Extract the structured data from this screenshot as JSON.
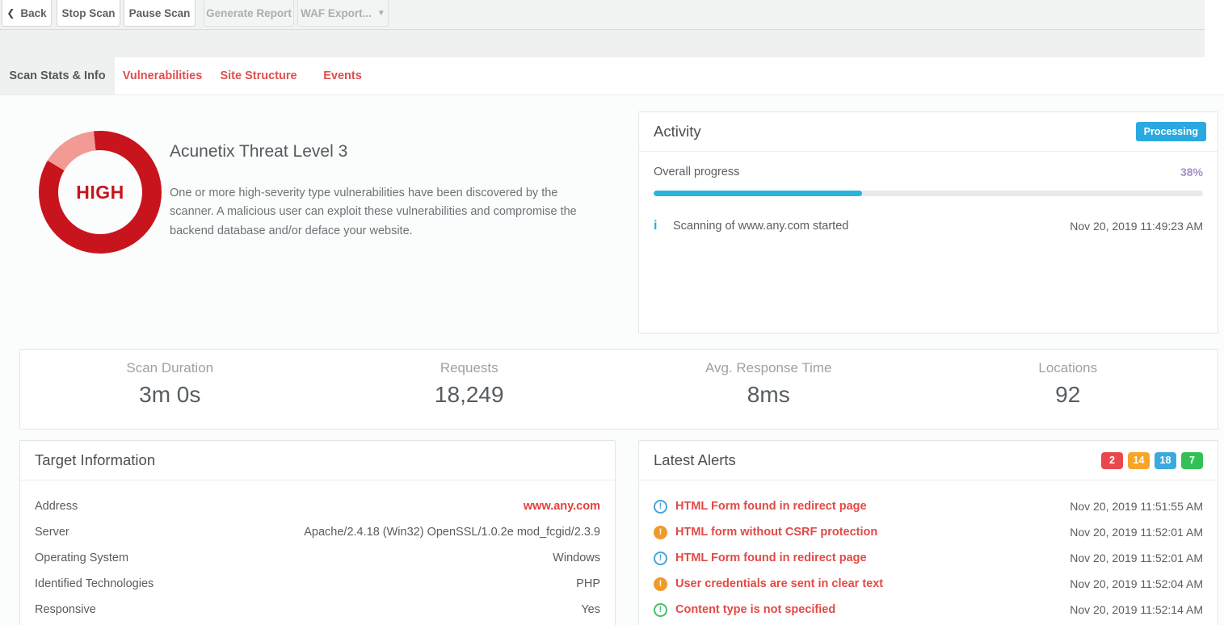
{
  "toolbar": {
    "back": "Back",
    "stop_scan": "Stop Scan",
    "pause_scan": "Pause Scan",
    "generate_report": "Generate Report",
    "waf_export": "WAF Export..."
  },
  "tabs": [
    {
      "label": "Scan Stats & Info",
      "active": true
    },
    {
      "label": "Vulnerabilities",
      "active": false
    },
    {
      "label": "Site Structure",
      "active": false
    },
    {
      "label": "Events",
      "active": false
    }
  ],
  "threat": {
    "gauge_label": "HIGH",
    "title": "Acunetix Threat Level 3",
    "description": "One or more high-severity type vulnerabilities have been discovered by the scanner. A malicious user can exploit these vulnerabilities and compromise the backend database and/or deface your website.",
    "gauge_main_color": "#c8141d",
    "gauge_segment_color": "#f29b94"
  },
  "activity": {
    "title": "Activity",
    "status_badge": "Processing",
    "status_color": "#29a9e0",
    "progress_label": "Overall progress",
    "progress_percent": 38,
    "progress_text": "38%",
    "progress_bar_color": "#2cb3dd",
    "event": {
      "icon": "info-icon",
      "message": "Scanning of www.any.com started",
      "timestamp": "Nov 20, 2019 11:49:23 AM"
    }
  },
  "stats": [
    {
      "label": "Scan Duration",
      "value": "3m 0s"
    },
    {
      "label": "Requests",
      "value": "18,249"
    },
    {
      "label": "Avg. Response Time",
      "value": "8ms"
    },
    {
      "label": "Locations",
      "value": "92"
    }
  ],
  "target_info": {
    "title": "Target Information",
    "rows": [
      {
        "label": "Address",
        "value": "www.any.com"
      },
      {
        "label": "Server",
        "value": "Apache/2.4.18 (Win32) OpenSSL/1.0.2e mod_fcgid/2.3.9"
      },
      {
        "label": "Operating System",
        "value": "Windows"
      },
      {
        "label": "Identified Technologies",
        "value": "PHP"
      },
      {
        "label": "Responsive",
        "value": "Yes"
      }
    ]
  },
  "alerts": {
    "title": "Latest Alerts",
    "severity_counts": [
      {
        "severity": "high",
        "count": "2",
        "color": "#e9494d"
      },
      {
        "severity": "medium",
        "count": "14",
        "color": "#f7a428"
      },
      {
        "severity": "low",
        "count": "18",
        "color": "#3aabdc"
      },
      {
        "severity": "informational",
        "count": "7",
        "color": "#33c156"
      }
    ],
    "items": [
      {
        "icon": "alert-circle-blue",
        "message": "HTML Form found in redirect page",
        "timestamp": "Nov 20, 2019 11:51:55 AM"
      },
      {
        "icon": "alert-circle-orange",
        "message": "HTML form without CSRF protection",
        "timestamp": "Nov 20, 2019 11:52:01 AM"
      },
      {
        "icon": "alert-circle-blue",
        "message": "HTML Form found in redirect page",
        "timestamp": "Nov 20, 2019 11:52:01 AM"
      },
      {
        "icon": "alert-circle-orange",
        "message": "User credentials are sent in clear text",
        "timestamp": "Nov 20, 2019 11:52:04 AM"
      },
      {
        "icon": "alert-circle-green",
        "message": "Content type is not specified",
        "timestamp": "Nov 20, 2019 11:52:14 AM"
      }
    ]
  }
}
